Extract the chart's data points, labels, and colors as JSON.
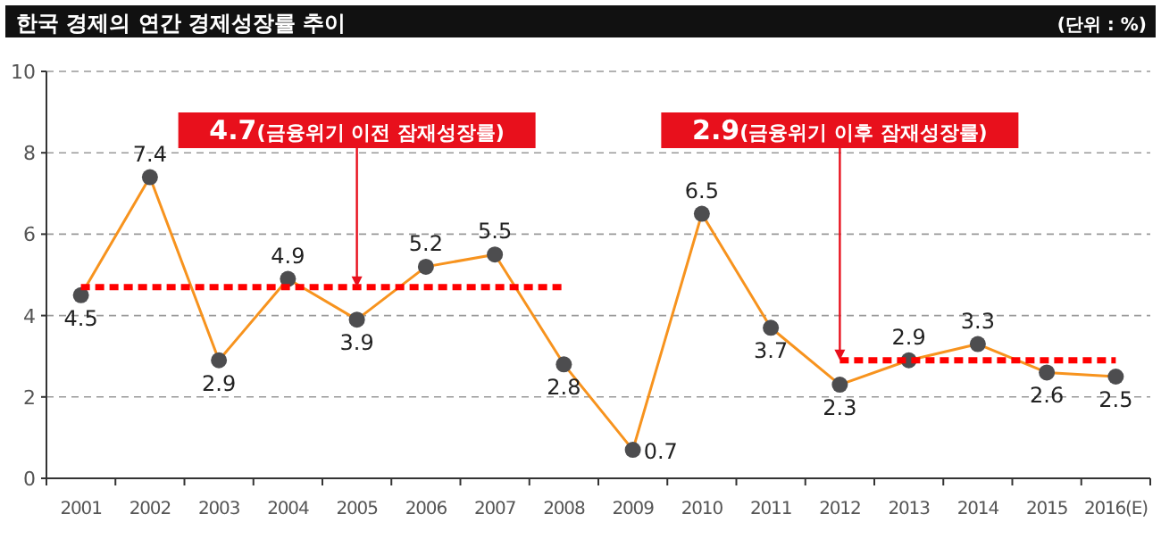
{
  "chart_data": {
    "type": "line",
    "title": "한국 경제의 연간 경제성장률 추이",
    "subtitle": "(단위 : %)",
    "categories": [
      "2001",
      "2002",
      "2003",
      "2004",
      "2005",
      "2006",
      "2007",
      "2008",
      "2009",
      "2010",
      "2011",
      "2012",
      "2013",
      "2014",
      "2015",
      "2016(E)"
    ],
    "series": [
      {
        "color": "#f7931e",
        "values": [
          4.5,
          7.4,
          2.9,
          4.9,
          3.9,
          5.2,
          5.5,
          2.8,
          0.7,
          6.5,
          3.7,
          2.3,
          2.9,
          3.3,
          2.6,
          2.5
        ],
        "marker": "circle",
        "data_labels": true
      },
      {
        "color": "#ff0000",
        "values": [
          4.7,
          4.7,
          4.7,
          4.7,
          4.7,
          4.7,
          4.7,
          4.7,
          null,
          null,
          null,
          null,
          null,
          null,
          null,
          null
        ],
        "line_style": "dashed",
        "marker": "none"
      },
      {
        "color": "#ff0000",
        "values": [
          null,
          null,
          null,
          null,
          null,
          null,
          null,
          null,
          null,
          null,
          null,
          2.9,
          2.9,
          2.9,
          2.9,
          2.9
        ],
        "line_style": "dashed",
        "marker": "none"
      }
    ],
    "annotations": [
      {
        "text": "4.7(금융위기 이전 잠재성장률)",
        "x": "2005",
        "y": 4.7
      },
      {
        "text": "2.9(금융위기 이후 잠재성장률)",
        "x": "2012",
        "y": 2.9
      }
    ],
    "ylim": [
      0,
      10
    ],
    "yticks": [
      0,
      2,
      4,
      6,
      8,
      10
    ],
    "grid": "y"
  }
}
